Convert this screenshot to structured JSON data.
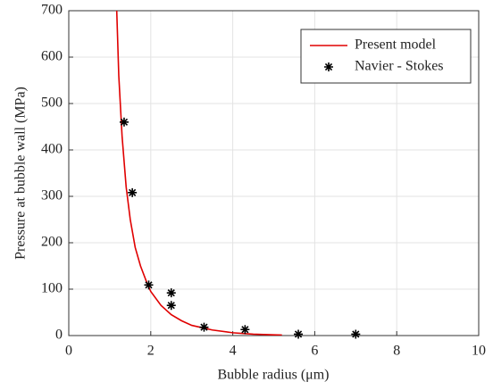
{
  "chart_data": {
    "type": "line",
    "xlabel": "Bubble radius (μm)",
    "ylabel": "Pressure at bubble wall (MPa)",
    "xlim": [
      0,
      10
    ],
    "xticks": [
      0,
      2,
      4,
      6,
      8,
      10
    ],
    "ylim": [
      0,
      700
    ],
    "yticks": [
      0,
      100,
      200,
      300,
      400,
      500,
      600,
      700
    ],
    "grid": true,
    "legend": "northeast",
    "series": [
      {
        "name": "Present model",
        "color": "#e00000",
        "mark": "line",
        "x": [
          1.17,
          1.22,
          1.3,
          1.4,
          1.5,
          1.62,
          1.75,
          1.9,
          2.0,
          2.25,
          2.5,
          2.75,
          3.0,
          3.5,
          4.0,
          4.5,
          5.0,
          5.2
        ],
        "values": [
          700,
          560,
          430,
          320,
          250,
          190,
          150,
          115,
          95,
          65,
          45,
          32,
          22,
          12,
          6,
          3,
          1.5,
          1
        ]
      },
      {
        "name": "Navier - Stokes",
        "color": "#000000",
        "mark": "asterisk",
        "x": [
          1.35,
          1.55,
          1.95,
          2.5,
          2.5,
          3.3,
          4.3,
          5.6,
          7.0
        ],
        "values": [
          460,
          308,
          109,
          92,
          65,
          18,
          13,
          3,
          3
        ]
      }
    ]
  }
}
